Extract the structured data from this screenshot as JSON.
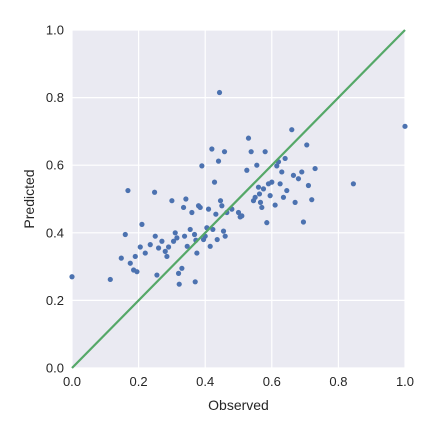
{
  "chart_data": {
    "type": "scatter",
    "xlabel": "Observed",
    "ylabel": "Predicted",
    "xlim": [
      0,
      1
    ],
    "ylim": [
      0,
      1
    ],
    "xticks": [
      "0.0",
      "0.2",
      "0.4",
      "0.6",
      "0.8",
      "1.0"
    ],
    "yticks": [
      "0.0",
      "0.2",
      "0.4",
      "0.6",
      "0.8",
      "1.0"
    ],
    "grid": true,
    "background_color": "#eaeaf2",
    "point_color": "#4c72b0",
    "reference_line": {
      "x": [
        0,
        1
      ],
      "y": [
        0,
        1
      ],
      "color": "#55a868"
    },
    "points": [
      {
        "x": 0.0,
        "y": 0.27
      },
      {
        "x": 0.115,
        "y": 0.262
      },
      {
        "x": 0.148,
        "y": 0.325
      },
      {
        "x": 0.16,
        "y": 0.395
      },
      {
        "x": 0.168,
        "y": 0.525
      },
      {
        "x": 0.175,
        "y": 0.31
      },
      {
        "x": 0.185,
        "y": 0.29
      },
      {
        "x": 0.19,
        "y": 0.33
      },
      {
        "x": 0.195,
        "y": 0.285
      },
      {
        "x": 0.205,
        "y": 0.358
      },
      {
        "x": 0.21,
        "y": 0.425
      },
      {
        "x": 0.22,
        "y": 0.34
      },
      {
        "x": 0.235,
        "y": 0.365
      },
      {
        "x": 0.248,
        "y": 0.52
      },
      {
        "x": 0.25,
        "y": 0.39
      },
      {
        "x": 0.255,
        "y": 0.275
      },
      {
        "x": 0.26,
        "y": 0.355
      },
      {
        "x": 0.27,
        "y": 0.375
      },
      {
        "x": 0.28,
        "y": 0.345
      },
      {
        "x": 0.285,
        "y": 0.33
      },
      {
        "x": 0.29,
        "y": 0.358
      },
      {
        "x": 0.3,
        "y": 0.495
      },
      {
        "x": 0.305,
        "y": 0.375
      },
      {
        "x": 0.31,
        "y": 0.4
      },
      {
        "x": 0.315,
        "y": 0.385
      },
      {
        "x": 0.32,
        "y": 0.28
      },
      {
        "x": 0.322,
        "y": 0.248
      },
      {
        "x": 0.33,
        "y": 0.295
      },
      {
        "x": 0.335,
        "y": 0.475
      },
      {
        "x": 0.338,
        "y": 0.39
      },
      {
        "x": 0.342,
        "y": 0.5
      },
      {
        "x": 0.346,
        "y": 0.36
      },
      {
        "x": 0.355,
        "y": 0.41
      },
      {
        "x": 0.36,
        "y": 0.46
      },
      {
        "x": 0.368,
        "y": 0.395
      },
      {
        "x": 0.372,
        "y": 0.378
      },
      {
        "x": 0.37,
        "y": 0.255
      },
      {
        "x": 0.375,
        "y": 0.34
      },
      {
        "x": 0.38,
        "y": 0.48
      },
      {
        "x": 0.385,
        "y": 0.475
      },
      {
        "x": 0.39,
        "y": 0.598
      },
      {
        "x": 0.395,
        "y": 0.38
      },
      {
        "x": 0.4,
        "y": 0.39
      },
      {
        "x": 0.405,
        "y": 0.415
      },
      {
        "x": 0.41,
        "y": 0.47
      },
      {
        "x": 0.415,
        "y": 0.36
      },
      {
        "x": 0.42,
        "y": 0.648
      },
      {
        "x": 0.423,
        "y": 0.41
      },
      {
        "x": 0.428,
        "y": 0.55
      },
      {
        "x": 0.432,
        "y": 0.455
      },
      {
        "x": 0.436,
        "y": 0.38
      },
      {
        "x": 0.44,
        "y": 0.612
      },
      {
        "x": 0.443,
        "y": 0.815
      },
      {
        "x": 0.446,
        "y": 0.495
      },
      {
        "x": 0.45,
        "y": 0.48
      },
      {
        "x": 0.455,
        "y": 0.405
      },
      {
        "x": 0.46,
        "y": 0.39
      },
      {
        "x": 0.458,
        "y": 0.64
      },
      {
        "x": 0.465,
        "y": 0.46
      },
      {
        "x": 0.48,
        "y": 0.47
      },
      {
        "x": 0.5,
        "y": 0.46
      },
      {
        "x": 0.505,
        "y": 0.447
      },
      {
        "x": 0.51,
        "y": 0.45
      },
      {
        "x": 0.525,
        "y": 0.585
      },
      {
        "x": 0.53,
        "y": 0.68
      },
      {
        "x": 0.538,
        "y": 0.64
      },
      {
        "x": 0.545,
        "y": 0.495
      },
      {
        "x": 0.55,
        "y": 0.505
      },
      {
        "x": 0.555,
        "y": 0.6
      },
      {
        "x": 0.56,
        "y": 0.535
      },
      {
        "x": 0.563,
        "y": 0.515
      },
      {
        "x": 0.566,
        "y": 0.49
      },
      {
        "x": 0.57,
        "y": 0.475
      },
      {
        "x": 0.575,
        "y": 0.53
      },
      {
        "x": 0.58,
        "y": 0.64
      },
      {
        "x": 0.585,
        "y": 0.43
      },
      {
        "x": 0.59,
        "y": 0.545
      },
      {
        "x": 0.595,
        "y": 0.51
      },
      {
        "x": 0.6,
        "y": 0.55
      },
      {
        "x": 0.61,
        "y": 0.482
      },
      {
        "x": 0.615,
        "y": 0.598
      },
      {
        "x": 0.62,
        "y": 0.61
      },
      {
        "x": 0.625,
        "y": 0.545
      },
      {
        "x": 0.63,
        "y": 0.58
      },
      {
        "x": 0.635,
        "y": 0.505
      },
      {
        "x": 0.64,
        "y": 0.62
      },
      {
        "x": 0.645,
        "y": 0.525
      },
      {
        "x": 0.66,
        "y": 0.705
      },
      {
        "x": 0.665,
        "y": 0.57
      },
      {
        "x": 0.67,
        "y": 0.49
      },
      {
        "x": 0.68,
        "y": 0.56
      },
      {
        "x": 0.69,
        "y": 0.58
      },
      {
        "x": 0.695,
        "y": 0.432
      },
      {
        "x": 0.705,
        "y": 0.66
      },
      {
        "x": 0.71,
        "y": 0.54
      },
      {
        "x": 0.72,
        "y": 0.498
      },
      {
        "x": 0.73,
        "y": 0.59
      },
      {
        "x": 0.845,
        "y": 0.545
      },
      {
        "x": 1.0,
        "y": 0.715
      }
    ]
  }
}
